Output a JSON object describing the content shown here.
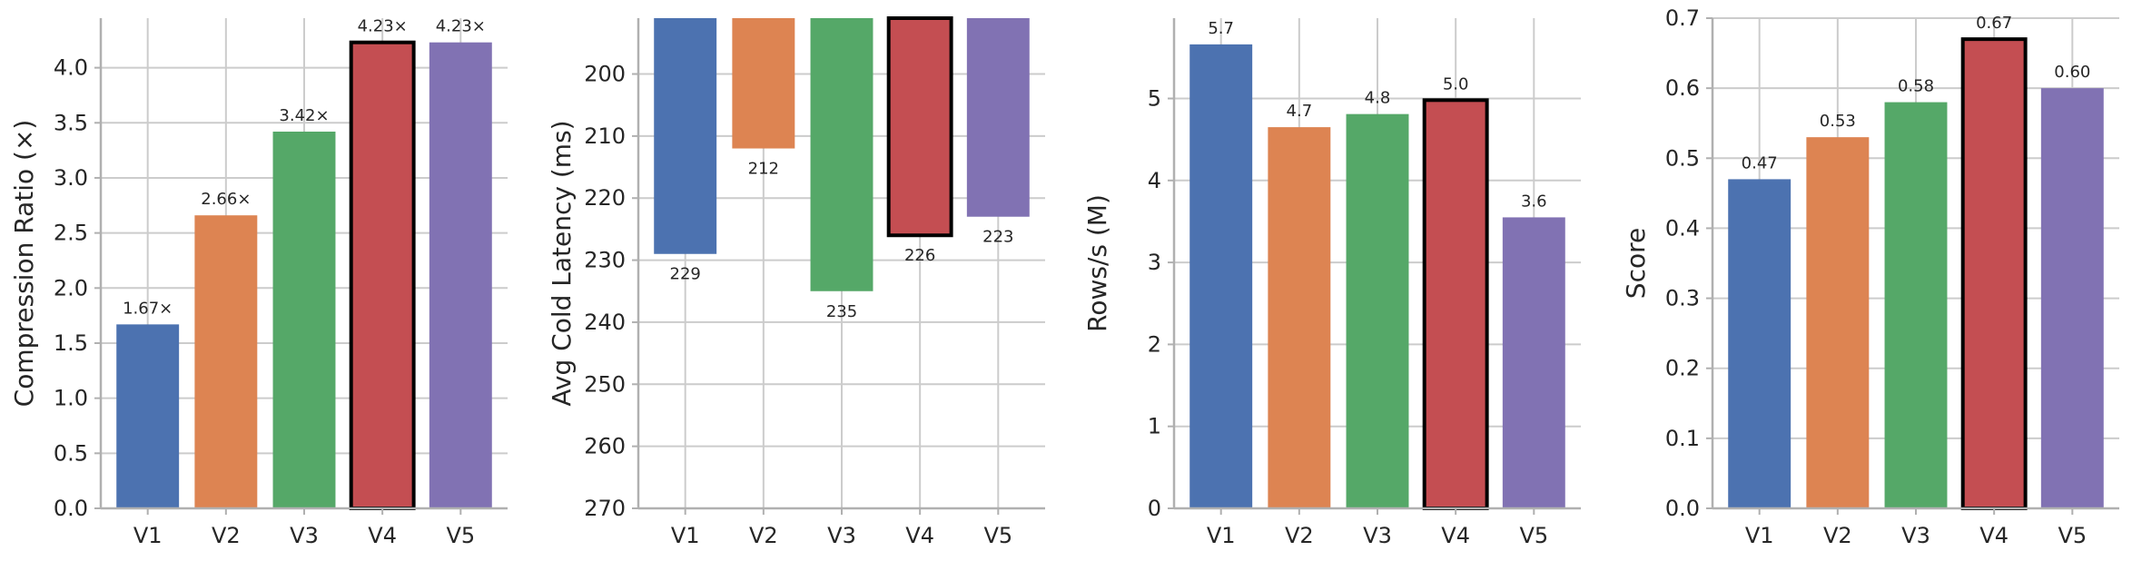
{
  "colors": {
    "series": [
      "#4c72b0",
      "#dd8452",
      "#55a868",
      "#c44e52",
      "#8172b3"
    ],
    "grid": "#cccccc",
    "axis": "#b0b0b0",
    "highlight_edge": "#000000"
  },
  "chart_data": [
    {
      "type": "bar",
      "categories": [
        "V1",
        "V2",
        "V3",
        "V4",
        "V5"
      ],
      "values": [
        1.67,
        2.66,
        3.42,
        4.23,
        4.23
      ],
      "data_labels": [
        "1.67×",
        "2.66×",
        "3.42×",
        "4.23×",
        "4.23×"
      ],
      "highlight": "V4",
      "title": "",
      "xlabel": "",
      "ylabel": "Compression Ratio (×)",
      "ylim": [
        0,
        4.45
      ],
      "yticks": [
        0.0,
        0.5,
        1.0,
        1.5,
        2.0,
        2.5,
        3.0,
        3.5,
        4.0
      ],
      "ytick_labels": [
        "0.0",
        "0.5",
        "1.0",
        "1.5",
        "2.0",
        "2.5",
        "3.0",
        "3.5",
        "4.0"
      ],
      "inverted_y": false,
      "grid": true
    },
    {
      "type": "bar",
      "categories": [
        "V1",
        "V2",
        "V3",
        "V4",
        "V5"
      ],
      "values": [
        229,
        212,
        235,
        226,
        223
      ],
      "data_labels": [
        "229",
        "212",
        "235",
        "226",
        "223"
      ],
      "highlight": "V4",
      "title": "",
      "xlabel": "",
      "ylabel": "Avg Cold Latency (ms)",
      "ylim": [
        191,
        270
      ],
      "yticks": [
        200,
        210,
        220,
        230,
        240,
        250,
        260,
        270
      ],
      "ytick_labels": [
        "200",
        "210",
        "220",
        "230",
        "240",
        "250",
        "260",
        "270"
      ],
      "inverted_y": true,
      "grid": true
    },
    {
      "type": "bar",
      "categories": [
        "V1",
        "V2",
        "V3",
        "V4",
        "V5"
      ],
      "values": [
        5.66,
        4.65,
        4.81,
        4.98,
        3.55
      ],
      "data_labels": [
        "5.7",
        "4.7",
        "4.8",
        "5.0",
        "3.6"
      ],
      "highlight": "V4",
      "title": "",
      "xlabel": "",
      "ylabel": "Rows/s (M)",
      "ylim": [
        0,
        5.98
      ],
      "yticks": [
        0,
        1,
        2,
        3,
        4,
        5
      ],
      "ytick_labels": [
        "0",
        "1",
        "2",
        "3",
        "4",
        "5"
      ],
      "inverted_y": false,
      "grid": true
    },
    {
      "type": "bar",
      "categories": [
        "V1",
        "V2",
        "V3",
        "V4",
        "V5"
      ],
      "values": [
        0.47,
        0.53,
        0.58,
        0.67,
        0.6
      ],
      "data_labels": [
        "0.47",
        "0.53",
        "0.58",
        "0.67",
        "0.60"
      ],
      "highlight": "V4",
      "title": "",
      "xlabel": "",
      "ylabel": "Score",
      "ylim": [
        0,
        0.7
      ],
      "yticks": [
        0.0,
        0.1,
        0.2,
        0.3,
        0.4,
        0.5,
        0.6,
        0.7
      ],
      "ytick_labels": [
        "0.0",
        "0.1",
        "0.2",
        "0.3",
        "0.4",
        "0.5",
        "0.6",
        "0.7"
      ],
      "inverted_y": false,
      "grid": true
    }
  ]
}
